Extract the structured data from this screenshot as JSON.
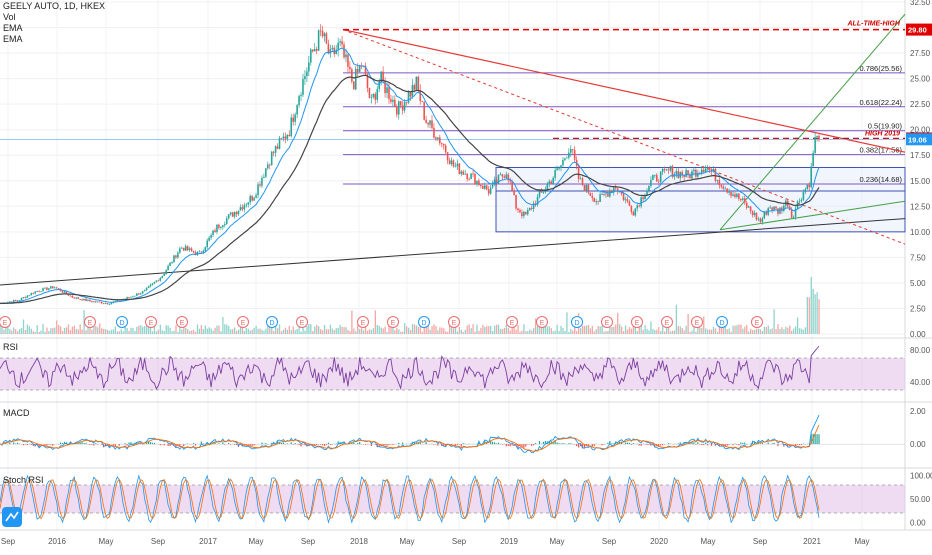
{
  "symbol": "GEELY AUTO, 1D, HKEX",
  "legend": [
    "Vol",
    "EMA",
    "EMA"
  ],
  "colors": {
    "up": "#26a69a",
    "down": "#ef5350",
    "ema_fast": "#2196f3",
    "ema_slow": "#444444",
    "resistance": "#e53935",
    "fib": "#7e57c2",
    "box": "#3f51b5",
    "trend_up": "#43a047",
    "osc_fill": "#e1bee7",
    "price_tag": "#2196f3"
  },
  "chart_data": [
    {
      "type": "line",
      "title": "GEELY AUTO, 1D, HKEX",
      "x_ticks": [
        "Sep",
        "2016",
        "May",
        "Sep",
        "2017",
        "May",
        "Sep",
        "2018",
        "May",
        "Sep",
        "2019",
        "May",
        "Sep",
        "2020",
        "May",
        "Sep",
        "2021",
        "May"
      ],
      "y_ticks": [
        "32.50",
        "30.00",
        "27.50",
        "25.00",
        "22.50",
        "20.00",
        "17.50",
        "15.00",
        "12.50",
        "10.00",
        "7.50",
        "5.00",
        "2.50",
        "0.00"
      ],
      "ylim": [
        0,
        32.5
      ],
      "last_price": "19.06",
      "annotations": {
        "all_time_high_label": "ALL-TIME-HIGH",
        "all_time_high_value": "29.80",
        "high_2019_label": "HIGH 2019",
        "high_2019_value": "19.14"
      },
      "fib_levels": [
        {
          "label": "0.786(25.56)",
          "value": 25.56
        },
        {
          "label": "0.618(22.24)",
          "value": 22.24
        },
        {
          "label": "0.5(19.90)",
          "value": 19.9
        },
        {
          "label": "0.382(17.56)",
          "value": 17.56
        },
        {
          "label": "0.236(14.68)",
          "value": 14.68
        }
      ],
      "price_path": [
        [
          0,
          3.0
        ],
        [
          0.02,
          3.3
        ],
        [
          0.04,
          4.2
        ],
        [
          0.06,
          4.6
        ],
        [
          0.08,
          3.6
        ],
        [
          0.1,
          3.2
        ],
        [
          0.12,
          3.0
        ],
        [
          0.14,
          3.5
        ],
        [
          0.16,
          4.2
        ],
        [
          0.18,
          5.8
        ],
        [
          0.2,
          8.5
        ],
        [
          0.22,
          7.8
        ],
        [
          0.24,
          10.5
        ],
        [
          0.26,
          12.0
        ],
        [
          0.28,
          13.5
        ],
        [
          0.3,
          17.5
        ],
        [
          0.32,
          20.0
        ],
        [
          0.33,
          23.5
        ],
        [
          0.345,
          27.5
        ],
        [
          0.355,
          29.5
        ],
        [
          0.365,
          27.0
        ],
        [
          0.375,
          28.3
        ],
        [
          0.39,
          24.5
        ],
        [
          0.4,
          26.5
        ],
        [
          0.41,
          22.5
        ],
        [
          0.42,
          25.0
        ],
        [
          0.44,
          22.0
        ],
        [
          0.46,
          24.5
        ],
        [
          0.47,
          21.0
        ],
        [
          0.49,
          18.5
        ],
        [
          0.5,
          16.5
        ],
        [
          0.52,
          15.5
        ],
        [
          0.54,
          14.0
        ],
        [
          0.56,
          16.0
        ],
        [
          0.57,
          12.5
        ],
        [
          0.58,
          11.5
        ],
        [
          0.6,
          14.0
        ],
        [
          0.62,
          16.5
        ],
        [
          0.63,
          18.5
        ],
        [
          0.64,
          15.0
        ],
        [
          0.66,
          13.0
        ],
        [
          0.68,
          14.5
        ],
        [
          0.7,
          12.0
        ],
        [
          0.72,
          15.0
        ],
        [
          0.74,
          16.0
        ],
        [
          0.76,
          15.5
        ],
        [
          0.78,
          16.5
        ],
        [
          0.8,
          14.5
        ],
        [
          0.82,
          13.0
        ],
        [
          0.84,
          11.0
        ],
        [
          0.85,
          12.5
        ],
        [
          0.86,
          12.0
        ],
        [
          0.87,
          13.0
        ],
        [
          0.875,
          11.5
        ],
        [
          0.885,
          13.5
        ],
        [
          0.895,
          15.0
        ],
        [
          0.9,
          19.0
        ],
        [
          0.905,
          19.06
        ]
      ]
    },
    {
      "type": "bar",
      "title": "Vol",
      "y_ticks": []
    },
    {
      "type": "line",
      "title": "RSI",
      "y_ticks": [
        "80.00",
        "40.00"
      ],
      "ylim": [
        20,
        90
      ]
    },
    {
      "type": "line",
      "title": "MACD",
      "y_ticks": [
        "2.00",
        "0.00"
      ],
      "ylim": [
        -1.2,
        2.3
      ]
    },
    {
      "type": "line",
      "title": "Stoch RSI",
      "y_ticks": [
        "100.00",
        "50.00",
        "0.00"
      ],
      "ylim": [
        -10,
        110
      ]
    }
  ],
  "rsi_title": "RSI",
  "macd_title": "MACD",
  "stoch_title": "Stoch RSI"
}
